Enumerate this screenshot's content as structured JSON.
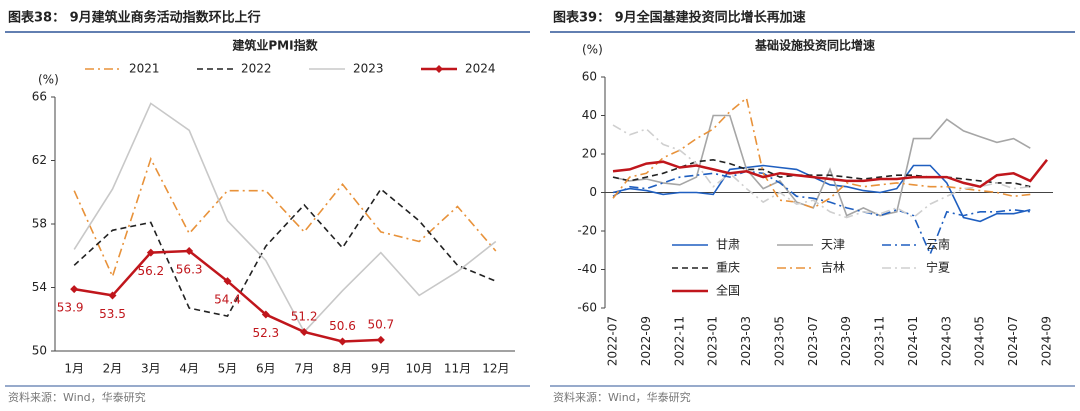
{
  "chart_data": [
    {
      "type": "line",
      "heading": "图表38：  9月建筑业商务活动指数环比上行",
      "title": "建筑业PMI指数",
      "unit": "(%)",
      "source": "资料来源：Wind，华泰研究",
      "categories": [
        "1月",
        "2月",
        "3月",
        "4月",
        "5月",
        "6月",
        "7月",
        "8月",
        "9月",
        "10月",
        "11月",
        "12月"
      ],
      "ylim": [
        50,
        66
      ],
      "yticks": [
        50,
        54,
        58,
        62,
        66
      ],
      "legend": "top",
      "series": [
        {
          "name": "2021",
          "color": "#e8923a",
          "style": "dashdot",
          "values": [
            60.1,
            54.7,
            62.1,
            57.4,
            60.1,
            60.1,
            57.5,
            60.5,
            57.5,
            56.9,
            59.1,
            56.3
          ]
        },
        {
          "name": "2022",
          "color": "#222222",
          "style": "dashed",
          "values": [
            55.4,
            57.6,
            58.1,
            52.7,
            52.2,
            56.6,
            59.2,
            56.5,
            60.2,
            58.2,
            55.4,
            54.4
          ]
        },
        {
          "name": "2023",
          "color": "#c8c8c8",
          "style": "solid",
          "values": [
            56.4,
            60.2,
            65.6,
            63.9,
            58.2,
            55.7,
            51.2,
            53.8,
            56.2,
            53.5,
            55.0,
            56.9
          ]
        },
        {
          "name": "2024",
          "color": "#c0161c",
          "style": "solid",
          "marker": "diamond",
          "data_labels": true,
          "values": [
            53.9,
            53.5,
            56.2,
            56.3,
            54.4,
            52.3,
            51.2,
            50.6,
            50.7,
            null,
            null,
            null
          ]
        }
      ]
    },
    {
      "type": "line",
      "heading": "图表39：  9月全国基建投资同比增长再加速",
      "title": "基础设施投资同比增速",
      "unit": "(%)",
      "source": "资料来源：Wind，华泰研究",
      "categories": [
        "2022-07",
        null,
        "2022-09",
        null,
        "2022-11",
        null,
        "2023-01",
        null,
        "2023-03",
        null,
        "2023-05",
        null,
        "2023-07",
        null,
        "2023-09",
        null,
        "2023-11",
        null,
        "2024-01",
        null,
        "2024-03",
        null,
        "2024-05",
        null,
        "2024-07",
        null,
        "2024-09"
      ],
      "ylim": [
        -60,
        60
      ],
      "yticks": [
        -60,
        -40,
        -20,
        0,
        20,
        40,
        60
      ],
      "legend": "lower left",
      "series": [
        {
          "name": "甘肃",
          "color": "#1f5fc0",
          "style": "solid",
          "values": [
            0,
            2,
            1,
            -1,
            0,
            0,
            -1,
            12,
            13,
            14,
            13,
            12,
            8,
            4,
            3,
            1,
            0,
            2,
            14,
            14,
            5,
            -13,
            -15,
            -11,
            -11,
            -9,
            null
          ]
        },
        {
          "name": "天津",
          "color": "#a6a6a6",
          "style": "solid",
          "values": [
            8,
            6,
            7,
            5,
            4,
            8,
            40,
            40,
            12,
            2,
            6,
            -5,
            -8,
            12,
            -12,
            -8,
            -12,
            -10,
            28,
            28,
            38,
            32,
            29,
            26,
            28,
            23,
            null
          ]
        },
        {
          "name": "云南",
          "color": "#1f5fc0",
          "style": "dashdot",
          "values": [
            -2,
            3,
            2,
            5,
            8,
            9,
            10,
            8,
            11,
            10,
            5,
            -2,
            -3,
            -5,
            -8,
            -10,
            -12,
            -9,
            -12,
            -32,
            -10,
            -12,
            -10,
            -10,
            -9,
            -10,
            null
          ]
        },
        {
          "name": "重庆",
          "color": "#222222",
          "style": "dashed",
          "values": [
            8,
            6,
            8,
            10,
            13,
            16,
            17,
            15,
            12,
            12,
            8,
            9,
            9,
            9,
            8,
            7,
            8,
            9,
            9,
            8,
            8,
            7,
            6,
            5,
            5,
            3,
            null
          ]
        },
        {
          "name": "吉林",
          "color": "#e8923a",
          "style": "dashdot",
          "values": [
            -3,
            8,
            10,
            18,
            22,
            28,
            33,
            42,
            49,
            10,
            -4,
            -5,
            -8,
            -3,
            5,
            3,
            4,
            5,
            4,
            3,
            3,
            2,
            1,
            0,
            -2,
            -1,
            null
          ]
        },
        {
          "name": "宁夏",
          "color": "#cfcfcf",
          "style": "dashdot",
          "values": [
            35,
            30,
            33,
            25,
            22,
            15,
            3,
            10,
            2,
            -5,
            0,
            -6,
            -4,
            -10,
            -13,
            -10,
            -11,
            -8,
            -13,
            -6,
            -2,
            2,
            3,
            5,
            2,
            3,
            null
          ]
        },
        {
          "name": "全国",
          "color": "#c0161c",
          "style": "solid",
          "width": 2.5,
          "values": [
            11,
            12,
            15,
            16,
            13,
            14,
            12,
            10,
            11,
            8,
            10,
            9,
            8,
            7,
            6,
            6,
            7,
            7,
            8,
            8,
            8,
            5,
            3,
            9,
            10,
            6,
            17
          ]
        }
      ]
    }
  ]
}
